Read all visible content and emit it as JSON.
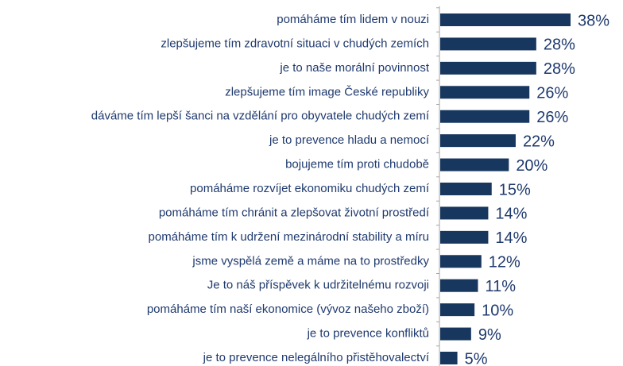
{
  "chart_data": {
    "type": "bar",
    "orientation": "horizontal",
    "color": "#17375e",
    "categories": [
      "pomáháme tím lidem v nouzi",
      "zlepšujeme tím zdravotní situaci v chudých zemích",
      "je to naše morální povinnost",
      "zlepšujeme tím image České republiky",
      "dáváme tím lepší šanci na vzdělání pro obyvatele chudých zemí",
      "je to prevence hladu a nemocí",
      "bojujeme tím proti chudobě",
      "pomáháme rozvíjet ekonomiku chudých zemí",
      "pomáháme tím chránit a zlepšovat životní prostředí",
      "pomáháme tím k udržení mezinárodní stability a míru",
      "jsme vyspělá země a máme na to prostředky",
      "Je to náš příspěvek k udržitelnému rozvoji",
      "pomáháme tím naší ekonomice (vývoz našeho zboží)",
      "je to prevence konfliktů",
      "je to prevence nelegálního přistěhovalectví"
    ],
    "values": [
      38,
      28,
      28,
      26,
      26,
      22,
      20,
      15,
      14,
      14,
      12,
      11,
      10,
      9,
      5
    ],
    "value_labels": [
      "38%",
      "28%",
      "28%",
      "26%",
      "26%",
      "22%",
      "20%",
      "15%",
      "14%",
      "14%",
      "12%",
      "11%",
      "10%",
      "9%",
      "5%"
    ]
  }
}
